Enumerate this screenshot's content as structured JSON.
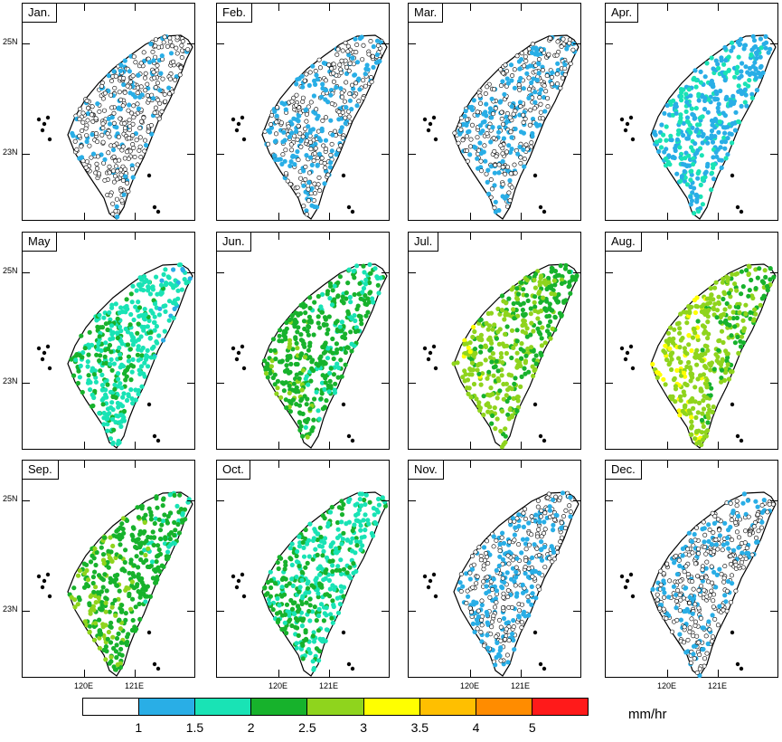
{
  "panels": [
    {
      "label": "Jan."
    },
    {
      "label": "Feb."
    },
    {
      "label": "Mar."
    },
    {
      "label": "Apr."
    },
    {
      "label": "May"
    },
    {
      "label": "Jun."
    },
    {
      "label": "Jul."
    },
    {
      "label": "Aug."
    },
    {
      "label": "Sep."
    },
    {
      "label": "Oct."
    },
    {
      "label": "Nov."
    },
    {
      "label": "Dec."
    }
  ],
  "lat_labels": [
    "25N",
    "23N"
  ],
  "lon_labels": [
    "120E",
    "121E"
  ],
  "colorbar": {
    "tick_labels": [
      "1",
      "1.5",
      "2",
      "2.5",
      "3",
      "3.5",
      "4",
      "5"
    ],
    "units": "mm/hr",
    "colors": [
      "#ffffff",
      "#29aee6",
      "#19e3b5",
      "#17b22c",
      "#8fd41d",
      "#ffff00",
      "#ffbf00",
      "#ff8c00",
      "#ff1a1a"
    ]
  }
}
